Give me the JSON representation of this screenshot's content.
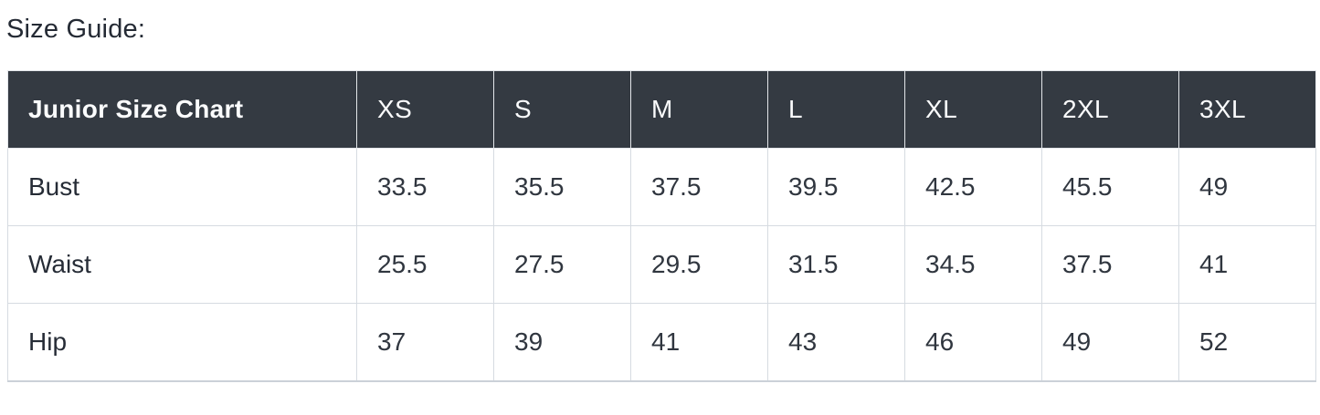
{
  "page": {
    "title": "Size Guide:"
  },
  "size_chart": {
    "header": [
      "Junior Size Chart",
      "XS",
      "S",
      "M",
      "L",
      "XL",
      "2XL",
      "3XL"
    ],
    "rows": [
      {
        "label": "Bust",
        "values": [
          "33.5",
          "35.5",
          "37.5",
          "39.5",
          "42.5",
          "45.5",
          "49"
        ]
      },
      {
        "label": "Waist",
        "values": [
          "25.5",
          "27.5",
          "29.5",
          "31.5",
          "34.5",
          "37.5",
          "41"
        ]
      },
      {
        "label": "Hip",
        "values": [
          "37",
          "39",
          "41",
          "43",
          "46",
          "49",
          "52"
        ]
      }
    ],
    "colors": {
      "header_bg": "#343a42",
      "header_text": "#fbfcfd",
      "body_text": "#30363f",
      "border": "#d6dbe1"
    }
  }
}
